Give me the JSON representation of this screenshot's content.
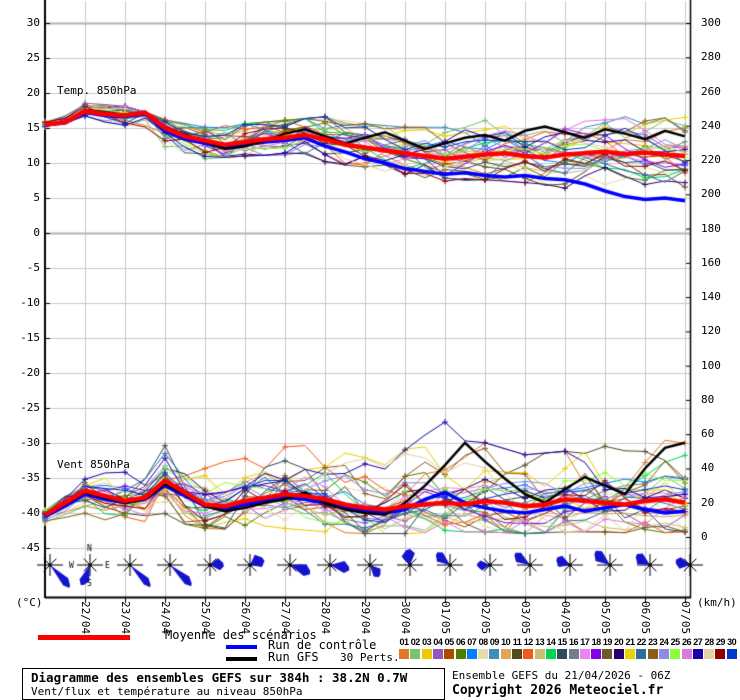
{
  "chart": {
    "temp_label": "Temp. 850hPa",
    "wind_label": "Vent 850hPa",
    "unit_left": "(°C)",
    "unit_right": "(km/h)",
    "left_ticks": [
      30,
      25,
      20,
      15,
      10,
      5,
      0,
      -5,
      -10,
      -15,
      -20,
      -25,
      -30,
      -35,
      -40,
      -45
    ],
    "right_ticks": [
      300,
      280,
      260,
      240,
      220,
      200,
      180,
      160,
      140,
      120,
      100,
      80,
      60,
      40,
      20,
      0
    ],
    "compass": {
      "n": "N",
      "s": "S",
      "e": "E",
      "w": "W"
    }
  },
  "chart_data": {
    "type": "line",
    "title": "Diagramme des ensembles GEFS sur 384h : 38.2N 0.7W",
    "x_hours_step": 12,
    "x_dates": [
      "22/04",
      "23/04",
      "24/04",
      "25/04",
      "26/04",
      "27/04",
      "28/04",
      "29/04",
      "30/04",
      "01/05",
      "02/05",
      "03/05",
      "04/05",
      "05/05",
      "06/05",
      "07/05"
    ],
    "temp": {
      "ylabel": "°C",
      "ylim": [
        -45,
        30
      ],
      "mean": [
        15.5,
        15.8,
        17.4,
        17.0,
        16.8,
        17.2,
        15.0,
        13.8,
        13.2,
        12.6,
        13.0,
        13.4,
        13.6,
        14.0,
        13.4,
        12.6,
        12.2,
        11.8,
        11.4,
        11.0,
        10.6,
        10.9,
        11.2,
        11.4,
        11.0,
        10.8,
        11.2,
        11.4,
        11.6,
        11.3,
        11.5,
        11.2,
        11.0
      ],
      "control": [
        15.5,
        15.7,
        17.2,
        16.8,
        16.6,
        17.0,
        14.6,
        13.4,
        12.8,
        12.2,
        12.6,
        13.0,
        13.2,
        13.6,
        12.4,
        11.6,
        10.6,
        10.0,
        9.2,
        8.8,
        8.4,
        8.6,
        8.2,
        8.0,
        8.2,
        7.8,
        7.6,
        7.0,
        6.0,
        5.2,
        4.8,
        5.0,
        4.6
      ],
      "gfs": [
        15.5,
        15.9,
        17.6,
        17.2,
        16.9,
        17.3,
        15.2,
        14.0,
        13.0,
        12.0,
        12.4,
        13.2,
        14.2,
        14.8,
        13.8,
        12.8,
        13.6,
        14.4,
        13.2,
        12.0,
        12.8,
        13.6,
        14.0,
        13.2,
        14.6,
        15.2,
        14.4,
        13.6,
        14.8,
        14.2,
        13.4,
        14.6,
        13.8
      ],
      "env_min": [
        15.2,
        16.3,
        15.4,
        12.0,
        10.6,
        11.0,
        11.2,
        10.2,
        9.2,
        8.4,
        7.4,
        7.6,
        7.2,
        6.4,
        5.6,
        5.0,
        4.5
      ],
      "env_max": [
        15.9,
        18.6,
        18.1,
        16.2,
        15.1,
        15.6,
        16.1,
        16.6,
        15.6,
        15.1,
        15.1,
        16.1,
        16.1,
        16.6,
        17.1,
        17.6,
        17.6
      ]
    },
    "wind": {
      "ylabel": "km/h",
      "ylim": [
        0,
        300
      ],
      "mean": [
        13,
        20,
        27,
        24,
        21,
        23,
        33,
        26,
        19,
        18,
        21,
        23,
        25,
        24,
        22,
        19,
        17,
        16,
        18,
        19,
        20,
        19,
        21,
        20,
        18,
        19,
        22,
        21,
        20,
        19,
        21,
        22,
        20
      ],
      "control": [
        12,
        18,
        25,
        22,
        20,
        22,
        30,
        24,
        18,
        16,
        19,
        21,
        23,
        22,
        20,
        17,
        15,
        14,
        16,
        22,
        26,
        20,
        17,
        15,
        14,
        16,
        18,
        15,
        17,
        19,
        16,
        14,
        15
      ],
      "gfs": [
        13,
        19,
        26,
        23,
        20,
        22,
        31,
        25,
        18,
        15,
        17,
        20,
        22,
        26,
        20,
        16,
        14,
        13,
        20,
        30,
        42,
        55,
        44,
        34,
        25,
        20,
        28,
        35,
        30,
        25,
        40,
        52,
        55
      ],
      "env_min": [
        8,
        12,
        8,
        10,
        5,
        4,
        5,
        3,
        2,
        2,
        3,
        3,
        2,
        3,
        3,
        2,
        3
      ],
      "env_max": [
        18,
        42,
        38,
        58,
        40,
        48,
        55,
        85,
        50,
        55,
        72,
        55,
        48,
        50,
        60,
        65,
        58
      ]
    },
    "members": 30,
    "member_colors": [
      "#E07828",
      "#79C36F",
      "#EEC900",
      "#9455BD",
      "#AF4A00",
      "#507F00",
      "#0080FF",
      "#E8DCAE",
      "#3D8EB9",
      "#E2A45A",
      "#554A1E",
      "#F25A1C",
      "#CBBE72",
      "#00D455",
      "#2D4C5C",
      "#6F7F87",
      "#EE82EE",
      "#8400E8",
      "#6F5B28",
      "#2B006E",
      "#E8D400",
      "#2E6E9E",
      "#8E5C1A",
      "#8A8AE8",
      "#8CFF3C",
      "#DA7ADA",
      "#1E00AA",
      "#E2D2A8",
      "#8E0000",
      "#0038CC"
    ],
    "mean_color": "#FF0000",
    "control_color": "#0000FF",
    "gfs_color": "#000000",
    "rose_color": "#1414CC",
    "wind_roses": [
      {
        "dir": 50,
        "spread": 14,
        "r": 30
      },
      {
        "dir": 115,
        "spread": 22,
        "r": 22
      },
      {
        "dir": 48,
        "spread": 13,
        "r": 30
      },
      {
        "dir": 45,
        "spread": 14,
        "r": 30
      },
      {
        "dir": 5,
        "spread": 45,
        "r": 14
      },
      {
        "dir": -15,
        "spread": 50,
        "r": 15
      },
      {
        "dir": 25,
        "spread": 28,
        "r": 22
      },
      {
        "dir": 15,
        "spread": 30,
        "r": 20
      },
      {
        "dir": 55,
        "spread": 35,
        "r": 15
      },
      {
        "dir": -90,
        "spread": 45,
        "r": 16
      },
      {
        "dir": -135,
        "spread": 30,
        "r": 18
      },
      {
        "dir": 185,
        "spread": 40,
        "r": 13
      },
      {
        "dir": -140,
        "spread": 28,
        "r": 19
      },
      {
        "dir": -150,
        "spread": 40,
        "r": 15
      },
      {
        "dir": -135,
        "spread": 30,
        "r": 20
      },
      {
        "dir": -140,
        "spread": 35,
        "r": 17
      },
      {
        "dir": -160,
        "spread": 40,
        "r": 15
      }
    ]
  },
  "legend": {
    "mean": "Moyenne des scénarios",
    "control": "Run de contrôle",
    "gfs": "Run GFS",
    "perts": "30 Perts.",
    "mean_color": "#FF0000",
    "control_color": "#0000FF",
    "gfs_color": "#000000",
    "pert_numbers": [
      "01",
      "02",
      "03",
      "04",
      "05",
      "06",
      "07",
      "08",
      "09",
      "10",
      "11",
      "12",
      "13",
      "14",
      "15",
      "16",
      "17",
      "18",
      "19",
      "20",
      "21",
      "22",
      "23",
      "24",
      "25",
      "26",
      "27",
      "28",
      "29",
      "30"
    ]
  },
  "footer": {
    "title": "Diagramme des ensembles GEFS sur 384h : 38.2N 0.7W",
    "subtitle": "Vent/flux et température au niveau 850hPa",
    "run_info": "Ensemble GEFS du 21/04/2026 - 06Z",
    "copyright": "Copyright 2026 Meteociel.fr"
  }
}
